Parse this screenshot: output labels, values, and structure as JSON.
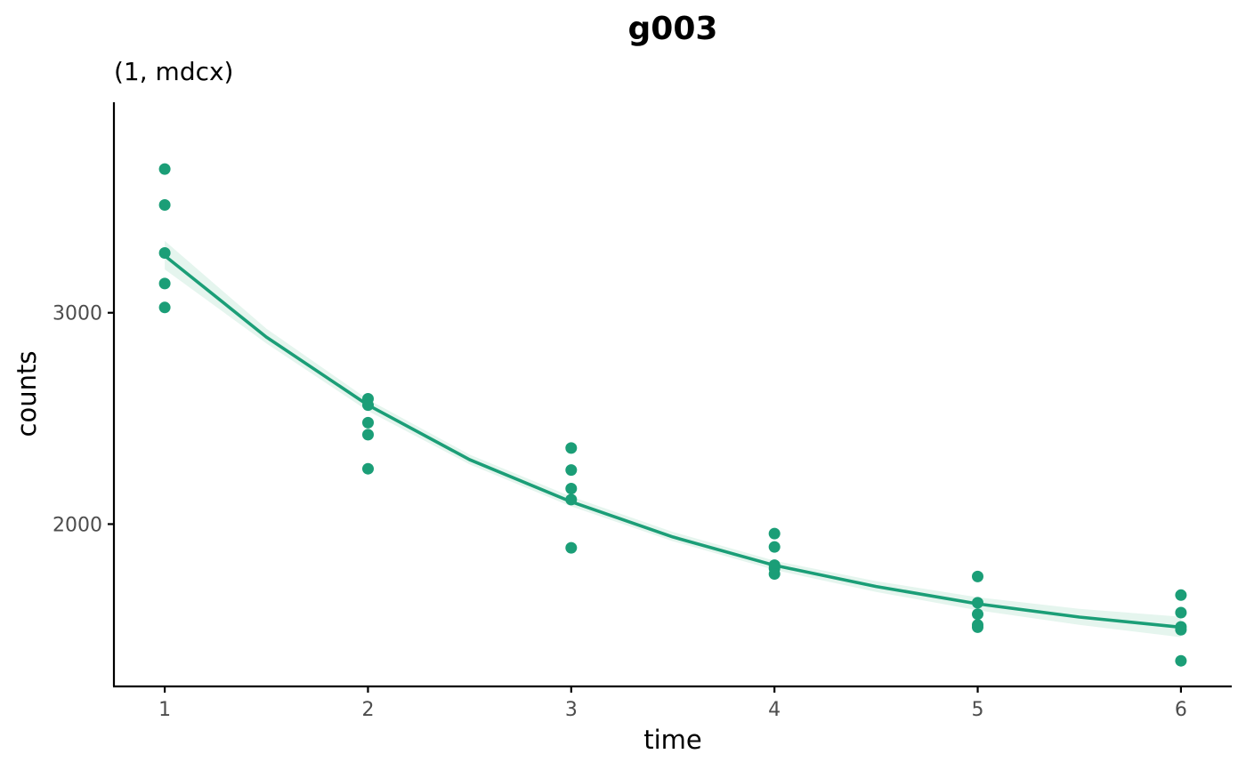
{
  "chart_data": {
    "type": "scatter",
    "title": "g003",
    "subtitle": "(1, mdcx)",
    "xlabel": "time",
    "ylabel": "counts",
    "xlim": [
      0.75,
      6.25
    ],
    "ylim": [
      1232,
      3996
    ],
    "x_ticks": [
      "1",
      "2",
      "3",
      "4",
      "5",
      "6"
    ],
    "y_ticks": [
      "2000",
      "3000"
    ],
    "grid": false,
    "legend": "none",
    "colors": {
      "points": "#1b9e77",
      "fit_line": "#1b9e77",
      "confidence_band": "#e5f5ee"
    },
    "series": [
      {
        "kind": "points",
        "points": [
          {
            "x": 1,
            "y": 3680
          },
          {
            "x": 1,
            "y": 3510
          },
          {
            "x": 1,
            "y": 3283
          },
          {
            "x": 1,
            "y": 3138
          },
          {
            "x": 1,
            "y": 3025
          },
          {
            "x": 2,
            "y": 2593
          },
          {
            "x": 2,
            "y": 2563
          },
          {
            "x": 2,
            "y": 2480
          },
          {
            "x": 2,
            "y": 2423
          },
          {
            "x": 2,
            "y": 2262
          },
          {
            "x": 3,
            "y": 2360
          },
          {
            "x": 3,
            "y": 2256
          },
          {
            "x": 3,
            "y": 2168
          },
          {
            "x": 3,
            "y": 2116
          },
          {
            "x": 3,
            "y": 1888
          },
          {
            "x": 4,
            "y": 1955
          },
          {
            "x": 4,
            "y": 1892
          },
          {
            "x": 4,
            "y": 1806
          },
          {
            "x": 4,
            "y": 1790
          },
          {
            "x": 4,
            "y": 1764
          },
          {
            "x": 5,
            "y": 1752
          },
          {
            "x": 5,
            "y": 1628
          },
          {
            "x": 5,
            "y": 1574
          },
          {
            "x": 5,
            "y": 1523
          },
          {
            "x": 5,
            "y": 1512
          },
          {
            "x": 6,
            "y": 1664
          },
          {
            "x": 6,
            "y": 1581
          },
          {
            "x": 6,
            "y": 1514
          },
          {
            "x": 6,
            "y": 1500
          },
          {
            "x": 6,
            "y": 1353
          }
        ]
      },
      {
        "kind": "fit_line",
        "x": [
          1,
          1.5,
          2,
          2.5,
          3,
          3.5,
          4,
          4.5,
          5,
          5.5,
          6
        ],
        "y": [
          3270,
          2885,
          2563,
          2305,
          2106,
          1939,
          1805,
          1705,
          1623,
          1560,
          1512
        ],
        "band_lower": [
          3205,
          2855,
          2535,
          2283,
          2084,
          1919,
          1783,
          1679,
          1592,
          1523,
          1465
        ],
        "band_upper": [
          3340,
          2925,
          2590,
          2329,
          2130,
          1963,
          1827,
          1730,
          1654,
          1599,
          1562
        ]
      }
    ]
  }
}
